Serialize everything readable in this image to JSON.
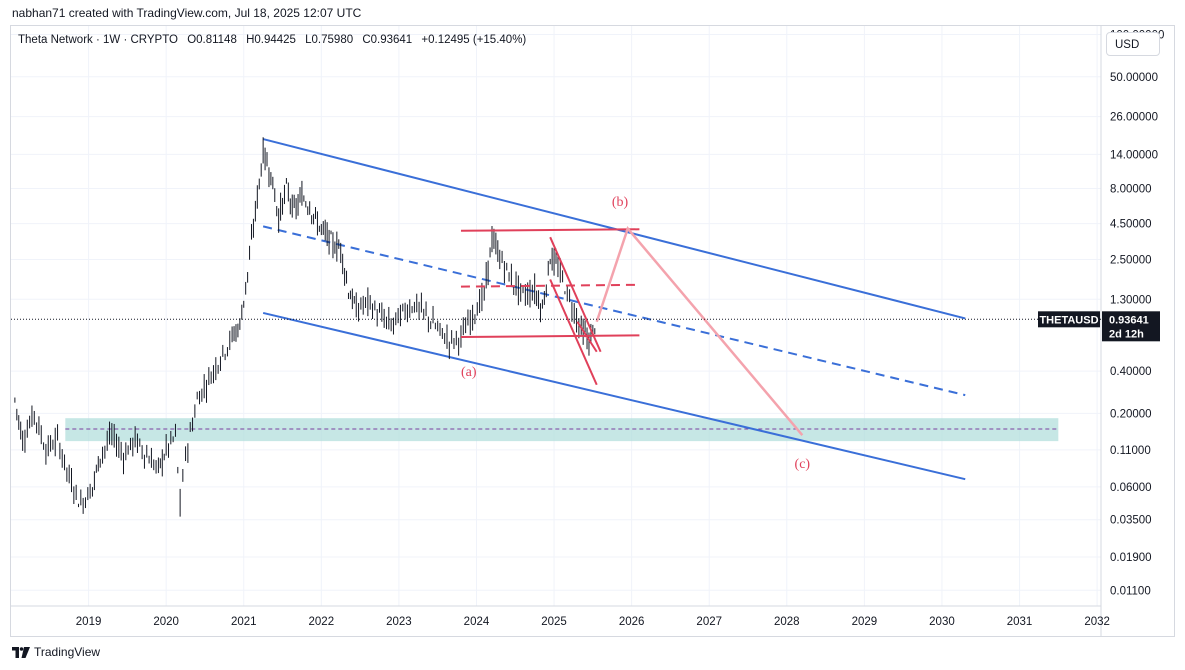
{
  "header": {
    "caption": "nabhan71 created with TradingView.com, Jul 18, 2025 12:07 UTC"
  },
  "legend": {
    "symbol": "Theta Network · 1W · CRYPTO",
    "open": "O0.81148",
    "high": "H0.94425",
    "low": "L0.75980",
    "close": "C0.93641",
    "change": "+0.12495 (+15.40%)"
  },
  "currency_button": "USD",
  "price_tag": {
    "ticker": "THETAUSD",
    "price": "0.93641",
    "countdown": "2d 12h"
  },
  "footer": {
    "brand": "TradingView"
  },
  "colors": {
    "channel": "#3a6fd8",
    "pattern": "#e0405a",
    "projection": "#f4a3ad",
    "support_zone": "#b3dfdc",
    "up": "#26a69a"
  },
  "chart_data": {
    "type": "line",
    "title": "Theta Network · 1W · CRYPTO (THETAUSD)",
    "y_scale": "log",
    "ylim": [
      0.0085,
      115
    ],
    "xlim": [
      2018.0,
      2032.05
    ],
    "y_ticks": [
      {
        "v": 100,
        "label": "100.00000"
      },
      {
        "v": 50,
        "label": "50.00000"
      },
      {
        "v": 26,
        "label": "26.00000"
      },
      {
        "v": 14,
        "label": "14.00000"
      },
      {
        "v": 8,
        "label": "8.00000"
      },
      {
        "v": 4.5,
        "label": "4.50000"
      },
      {
        "v": 2.5,
        "label": "2.50000"
      },
      {
        "v": 1.3,
        "label": "1.30000"
      },
      {
        "v": 0.4,
        "label": "0.40000"
      },
      {
        "v": 0.2,
        "label": "0.20000"
      },
      {
        "v": 0.11,
        "label": "0.11000"
      },
      {
        "v": 0.06,
        "label": "0.06000"
      },
      {
        "v": 0.035,
        "label": "0.03500"
      },
      {
        "v": 0.019,
        "label": "0.01900"
      },
      {
        "v": 0.011,
        "label": "0.01100"
      }
    ],
    "x_ticks": [
      {
        "v": 2019,
        "label": "2019"
      },
      {
        "v": 2020,
        "label": "2020"
      },
      {
        "v": 2021,
        "label": "2021"
      },
      {
        "v": 2022,
        "label": "2022"
      },
      {
        "v": 2023,
        "label": "2023"
      },
      {
        "v": 2024,
        "label": "2024"
      },
      {
        "v": 2025,
        "label": "2025"
      },
      {
        "v": 2026,
        "label": "2026"
      },
      {
        "v": 2027,
        "label": "2027"
      },
      {
        "v": 2028,
        "label": "2028"
      },
      {
        "v": 2029,
        "label": "2029"
      },
      {
        "v": 2030,
        "label": "2030"
      },
      {
        "v": 2031,
        "label": "2031"
      },
      {
        "v": 2032,
        "label": "2032"
      }
    ],
    "last_price": 0.93641,
    "price_path": [
      [
        2018.05,
        0.25
      ],
      [
        2018.15,
        0.13
      ],
      [
        2018.3,
        0.2
      ],
      [
        2018.45,
        0.11
      ],
      [
        2018.6,
        0.13
      ],
      [
        2018.75,
        0.07
      ],
      [
        2018.9,
        0.045
      ],
      [
        2019.05,
        0.06
      ],
      [
        2019.15,
        0.1
      ],
      [
        2019.3,
        0.14
      ],
      [
        2019.45,
        0.1
      ],
      [
        2019.6,
        0.13
      ],
      [
        2019.75,
        0.1
      ],
      [
        2019.9,
        0.08
      ],
      [
        2020.0,
        0.11
      ],
      [
        2020.12,
        0.14
      ],
      [
        2020.18,
        0.045
      ],
      [
        2020.25,
        0.1
      ],
      [
        2020.4,
        0.25
      ],
      [
        2020.55,
        0.35
      ],
      [
        2020.7,
        0.5
      ],
      [
        2020.85,
        0.7
      ],
      [
        2020.95,
        0.85
      ],
      [
        2021.05,
        2.0
      ],
      [
        2021.15,
        5.5
      ],
      [
        2021.25,
        14.5
      ],
      [
        2021.35,
        10.0
      ],
      [
        2021.45,
        5.0
      ],
      [
        2021.55,
        8.0
      ],
      [
        2021.65,
        5.5
      ],
      [
        2021.75,
        7.0
      ],
      [
        2021.85,
        6.0
      ],
      [
        2021.95,
        4.5
      ],
      [
        2022.05,
        3.8
      ],
      [
        2022.15,
        3.2
      ],
      [
        2022.25,
        3.0
      ],
      [
        2022.35,
        1.5
      ],
      [
        2022.45,
        1.1
      ],
      [
        2022.6,
        1.25
      ],
      [
        2022.75,
        1.0
      ],
      [
        2022.9,
        0.85
      ],
      [
        2023.05,
        1.05
      ],
      [
        2023.2,
        1.2
      ],
      [
        2023.35,
        1.0
      ],
      [
        2023.5,
        0.8
      ],
      [
        2023.65,
        0.65
      ],
      [
        2023.8,
        0.7
      ],
      [
        2023.95,
        1.0
      ],
      [
        2024.1,
        1.4
      ],
      [
        2024.2,
        3.5
      ],
      [
        2024.3,
        2.6
      ],
      [
        2024.45,
        1.8
      ],
      [
        2024.6,
        1.4
      ],
      [
        2024.75,
        1.5
      ],
      [
        2024.85,
        1.1
      ],
      [
        2024.95,
        2.6
      ],
      [
        2025.05,
        2.2
      ],
      [
        2025.2,
        1.3
      ],
      [
        2025.35,
        0.8
      ],
      [
        2025.45,
        0.65
      ],
      [
        2025.55,
        0.94
      ]
    ],
    "annotations": [
      {
        "label": "(a)",
        "x": 2023.9,
        "y": 0.37
      },
      {
        "label": "(b)",
        "x": 2025.85,
        "y": 6.0
      },
      {
        "label": "(c)",
        "x": 2028.2,
        "y": 0.082
      }
    ],
    "channel_upper": [
      [
        2021.25,
        18.0
      ],
      [
        2030.3,
        0.95
      ]
    ],
    "channel_lower": [
      [
        2021.25,
        1.04
      ],
      [
        2030.3,
        0.068
      ]
    ],
    "channel_mid": [
      [
        2021.25,
        4.3
      ],
      [
        2030.3,
        0.27
      ]
    ],
    "triangle_top": [
      [
        2023.8,
        4.0
      ],
      [
        2026.1,
        4.1
      ]
    ],
    "triangle_bottom": [
      [
        2023.8,
        0.7
      ],
      [
        2026.1,
        0.72
      ]
    ],
    "triangle_dashed": [
      [
        2023.8,
        1.6
      ],
      [
        2026.1,
        1.65
      ]
    ],
    "wedge_upper": [
      [
        2024.95,
        3.6
      ],
      [
        2025.6,
        0.55
      ]
    ],
    "wedge_lower": [
      [
        2024.95,
        1.8
      ],
      [
        2025.55,
        0.32
      ]
    ],
    "wedge_apex_line": [
      [
        2025.3,
        0.9
      ],
      [
        2025.55,
        0.55
      ]
    ],
    "projection_path": [
      [
        2025.55,
        0.9
      ],
      [
        2025.95,
        4.15
      ],
      [
        2028.2,
        0.14
      ]
    ],
    "support_zone": {
      "y_low": 0.127,
      "y_high": 0.185,
      "x_start": 2018.7,
      "x_end": 2031.5
    },
    "support_line": 0.155
  }
}
